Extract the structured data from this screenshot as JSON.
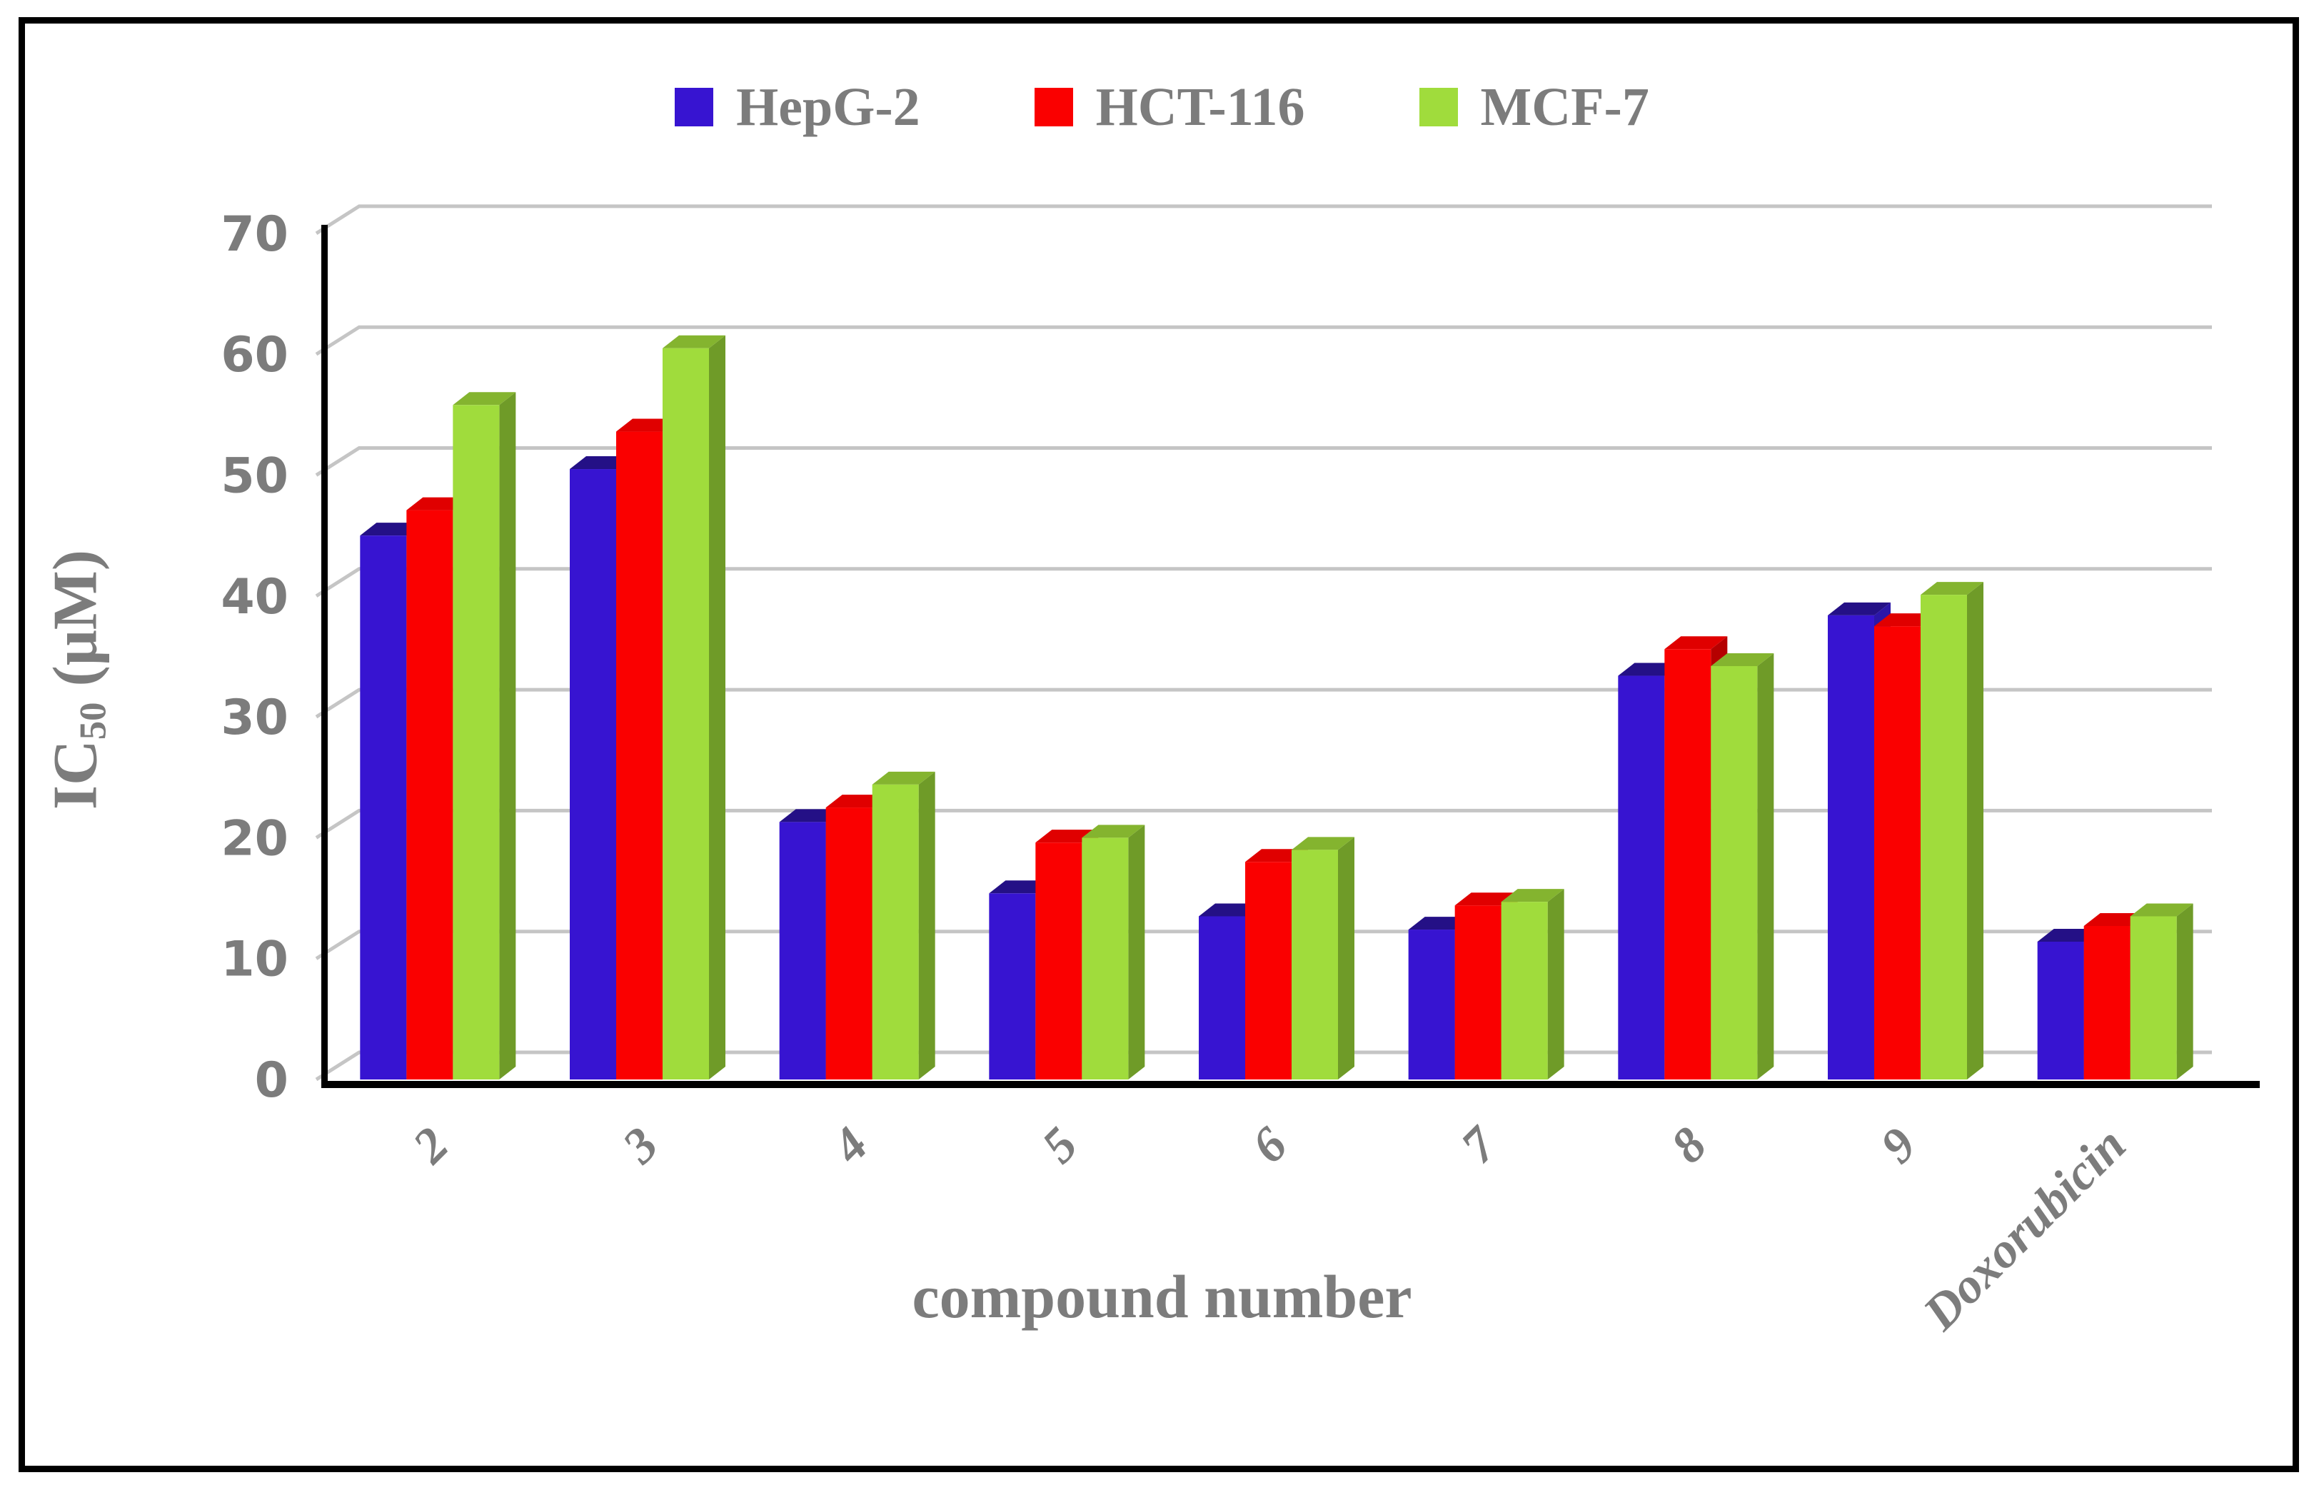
{
  "axes": {
    "y_title_main": "IC",
    "y_title_sub": "50",
    "y_title_rest": " (μM)",
    "x_title": "compound number"
  },
  "theme": {
    "text_color": "#7c7c7c",
    "grid_color": "#c5c5c5",
    "axis_color": "#000000",
    "background": "#ffffff",
    "border_color": "#000000"
  },
  "chart_data": {
    "type": "bar",
    "title": "",
    "xlabel": "compound number",
    "ylabel": "IC50 (μM)",
    "ylim": [
      0,
      70
    ],
    "yticks": [
      0,
      10,
      20,
      30,
      40,
      50,
      60,
      70
    ],
    "grid": true,
    "legend_position": "top",
    "effect": "3d-clustered-column",
    "categories": [
      "2",
      "3",
      "4",
      "5",
      "6",
      "7",
      "8",
      "9",
      "Doxorubicin"
    ],
    "series": [
      {
        "name": "HepG-2",
        "color": "#3714d1",
        "color_top": "#241086",
        "color_side": "#2b16a8",
        "values": [
          45.0,
          50.5,
          21.3,
          15.4,
          13.5,
          12.4,
          33.4,
          38.4,
          11.4
        ]
      },
      {
        "name": "HCT-116",
        "color": "#fa0000",
        "color_top": "#e00000",
        "color_side": "#b50000",
        "values": [
          47.1,
          53.6,
          22.5,
          19.6,
          18.0,
          14.4,
          35.6,
          37.5,
          12.7
        ]
      },
      {
        "name": "MCF-7",
        "color": "#a0dc3c",
        "color_top": "#84b42f",
        "color_side": "#6f9b28",
        "values": [
          55.8,
          60.5,
          24.4,
          20.0,
          19.0,
          14.7,
          34.2,
          40.1,
          13.5
        ]
      }
    ]
  }
}
